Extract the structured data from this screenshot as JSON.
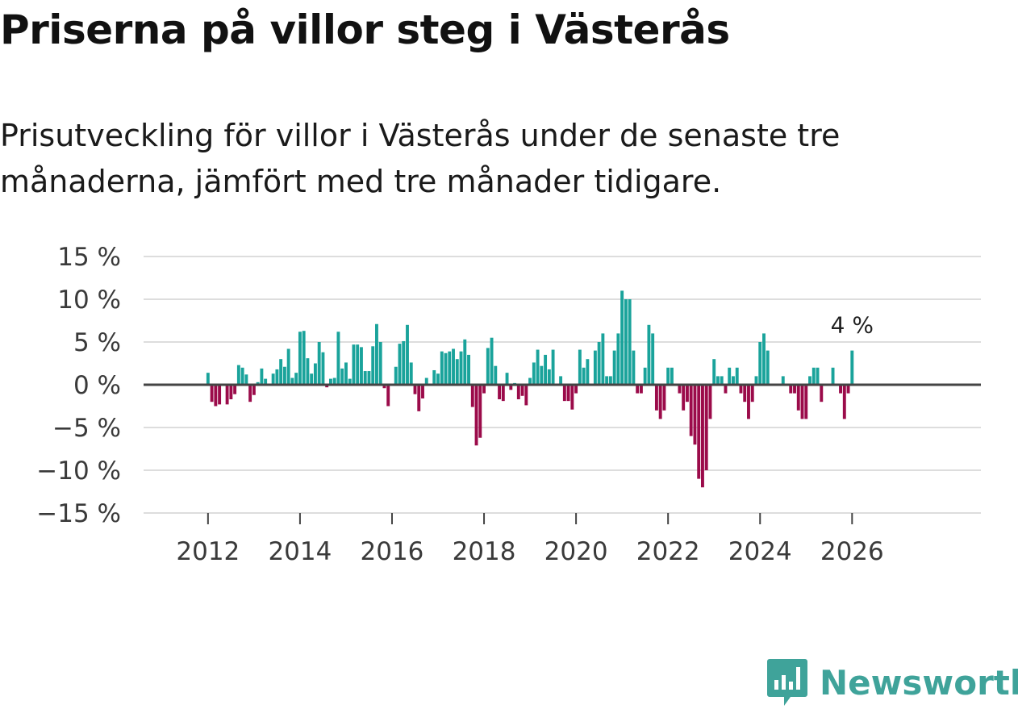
{
  "header": {
    "title": "Priserna på villor steg i Västerås",
    "subtitle": "Prisutveckling för villor i Västerås under de senaste tre månaderna, jämfört med tre månader tidigare."
  },
  "brand": {
    "name": "Newsworthy"
  },
  "colors": {
    "positive": "#1aa39b",
    "negative": "#9b0b4a",
    "grid": "#dddddd",
    "zero": "#444444",
    "brand": "#3fa39a"
  },
  "chart_data": {
    "type": "bar",
    "title": "Priserna på villor steg i Västerås",
    "ylabel": "",
    "xlabel": "",
    "ylim": [
      -15,
      15
    ],
    "xlim": [
      2010.6,
      2028.8
    ],
    "y_ticks": [
      {
        "value": 15,
        "label": "15 %"
      },
      {
        "value": 10,
        "label": "10 %"
      },
      {
        "value": 5,
        "label": "5 %"
      },
      {
        "value": 0,
        "label": "0 %"
      },
      {
        "value": -5,
        "label": "−5 %"
      },
      {
        "value": -10,
        "label": "−10 %"
      },
      {
        "value": -15,
        "label": "−15 %"
      }
    ],
    "x_ticks": [
      {
        "value": 2012,
        "label": "2012"
      },
      {
        "value": 2014,
        "label": "2014"
      },
      {
        "value": 2016,
        "label": "2016"
      },
      {
        "value": 2018,
        "label": "2018"
      },
      {
        "value": 2020,
        "label": "2020"
      },
      {
        "value": 2022,
        "label": "2022"
      },
      {
        "value": 2024,
        "label": "2024"
      },
      {
        "value": 2026,
        "label": "2026"
      }
    ],
    "start": "2012-01",
    "values": [
      1.4,
      -2,
      -2.5,
      -2.3,
      0,
      -2.3,
      -1.7,
      -1.1,
      2.3,
      2,
      1.2,
      -2,
      -1.2,
      0.3,
      1.9,
      0.7,
      0,
      1.3,
      1.8,
      3,
      2.1,
      4.2,
      0.8,
      1.4,
      6.2,
      6.3,
      3.1,
      1.3,
      2.5,
      5,
      3.8,
      -0.3,
      0.7,
      0.8,
      6.2,
      1.9,
      2.6,
      0.7,
      4.7,
      4.7,
      4.4,
      1.6,
      1.6,
      4.5,
      7.1,
      5,
      -0.4,
      -2.5,
      0,
      2.1,
      4.8,
      5.1,
      7,
      2.6,
      -1.1,
      -3.1,
      -1.6,
      0.8,
      0,
      1.7,
      1.3,
      3.9,
      3.7,
      3.9,
      4.2,
      3,
      3.9,
      5.3,
      3.5,
      -2.6,
      -7.1,
      -6.2,
      -1,
      4.3,
      5.5,
      2.2,
      -1.7,
      -1.9,
      1.4,
      -0.6,
      0.2,
      -1.7,
      -1.3,
      -2.4,
      0.8,
      2.6,
      4.1,
      2.2,
      3.5,
      1.8,
      4.1,
      0,
      1,
      -1.9,
      -1.9,
      -2.9,
      -1,
      4.1,
      2,
      3,
      0,
      4,
      5,
      6,
      1,
      1,
      4,
      6,
      11,
      10,
      10,
      4,
      -1,
      -1,
      2,
      7,
      6,
      -3,
      -4,
      -3,
      2,
      2,
      0,
      -1,
      -3,
      -2,
      -6,
      -7,
      -11,
      -12,
      -10,
      -4,
      3,
      1,
      1,
      -1,
      2,
      1,
      2,
      -1,
      -2,
      -4,
      -2,
      1,
      5,
      6,
      4,
      0,
      0,
      0,
      1,
      0,
      -1,
      -1,
      -3,
      -4,
      -4,
      1,
      2,
      2,
      -2,
      0,
      0,
      2,
      0,
      -1,
      -4,
      -1,
      4
    ],
    "annotation": {
      "label": "4 %",
      "target": "last"
    }
  }
}
